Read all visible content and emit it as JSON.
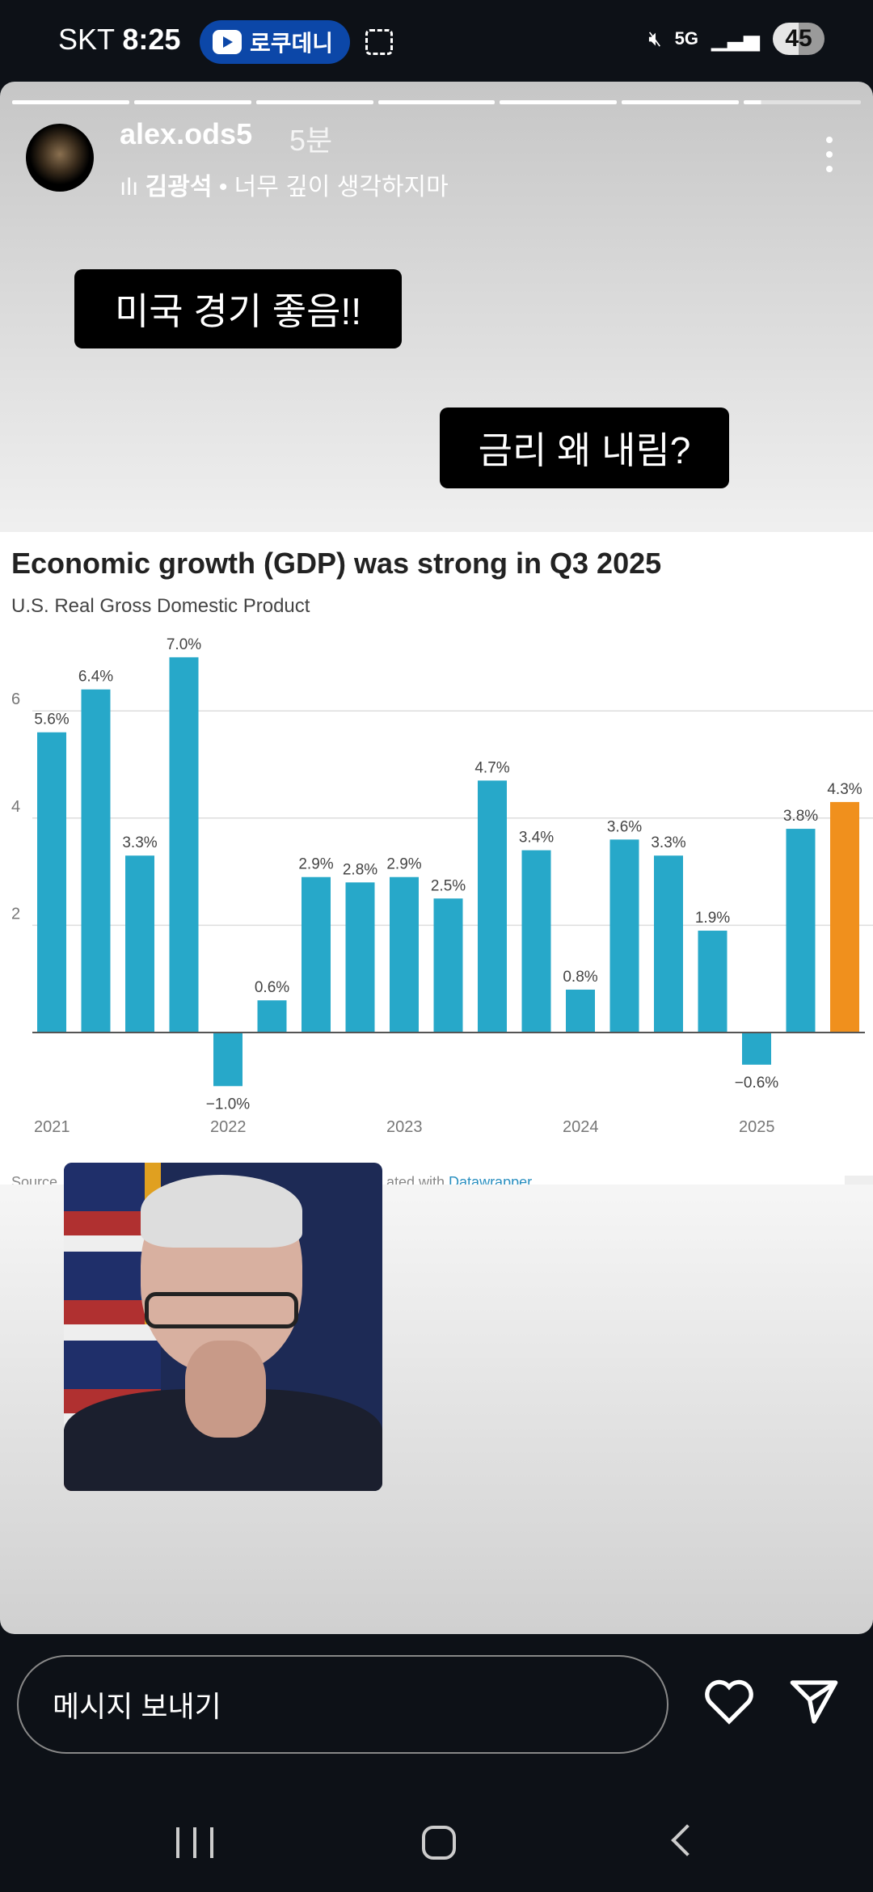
{
  "status_bar": {
    "carrier": "SKT",
    "time": "8:25",
    "media_pill": "로쿠데니",
    "network": "5G",
    "battery": "45"
  },
  "story": {
    "username": "alex.ods5",
    "time_ago": "5분",
    "music": {
      "artist": "김광석",
      "song": "너무 깊이 생각하지마"
    },
    "texts": [
      "미국 경기 좋음!!",
      "금리 왜 내림?"
    ],
    "progress_segments": 7
  },
  "chart_data": {
    "type": "bar",
    "title": "Economic growth (GDP) was strong in Q3 2025",
    "subtitle": "U.S. Real Gross Domestic Product",
    "categories": [
      "2021 Q1",
      "2021 Q2",
      "2021 Q3",
      "2021 Q4",
      "2022 Q1",
      "2022 Q2",
      "2022 Q3",
      "2022 Q4",
      "2023 Q1",
      "2023 Q2",
      "2023 Q3",
      "2023 Q4",
      "2024 Q1",
      "2024 Q2",
      "2024 Q3",
      "2024 Q4",
      "2025 Q1",
      "2025 Q2",
      "2025 Q3"
    ],
    "values": [
      5.6,
      6.4,
      3.3,
      7.0,
      -1.0,
      0.6,
      2.9,
      2.8,
      2.9,
      2.5,
      4.7,
      3.4,
      0.8,
      3.6,
      3.3,
      1.9,
      -0.6,
      3.8,
      4.3
    ],
    "data_labels": [
      "5.6%",
      "6.4%",
      "3.3%",
      "7.0%",
      "−1.0%",
      "0.6%",
      "2.9%",
      "2.8%",
      "2.9%",
      "2.5%",
      "4.7%",
      "3.4%",
      "0.8%",
      "3.6%",
      "3.3%",
      "1.9%",
      "−0.6%",
      "3.8%",
      "4.3%"
    ],
    "x_tick_labels": [
      "2021",
      "2022",
      "2023",
      "2024",
      "2025"
    ],
    "y_ticks": [
      2,
      4,
      6
    ],
    "ylim": [
      -1.5,
      7.5
    ],
    "grid": true,
    "colors": {
      "default": "#27a8c9",
      "highlight": "#f0901d"
    },
    "footer": {
      "source": "Source",
      "credit_prefix": "ated with",
      "credit_link": "Datawrapper"
    }
  },
  "reply": {
    "placeholder": "메시지 보내기"
  }
}
